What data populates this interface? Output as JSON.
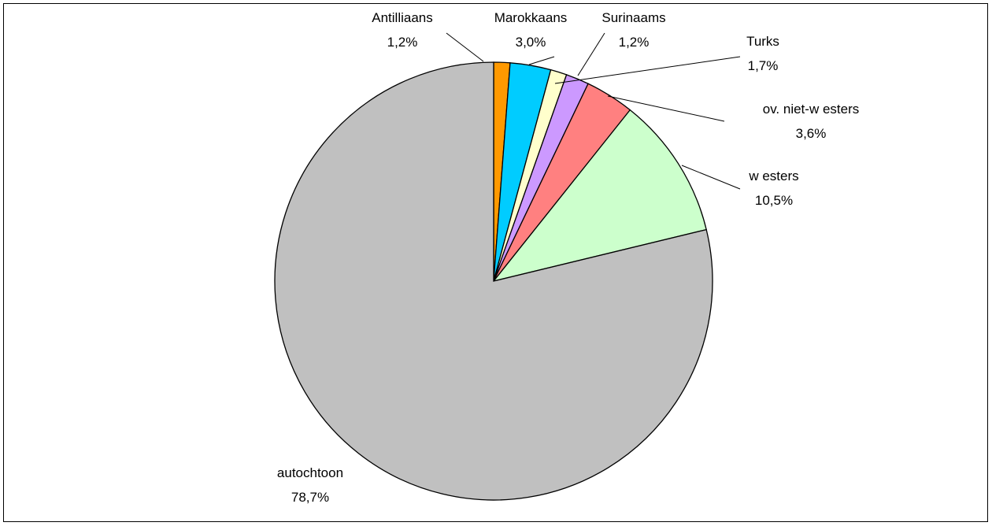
{
  "chart_data": {
    "type": "pie",
    "title": "",
    "start_angle_deg": 0,
    "direction": "clockwise",
    "slices": [
      {
        "name": "Antilliaans",
        "value": 1.2,
        "label": "1,2%",
        "color": "#ff9900"
      },
      {
        "name": "Marokkaans",
        "value": 3.0,
        "label": "3,0%",
        "color": "#00ccff"
      },
      {
        "name": "Surinaams",
        "value": 1.2,
        "label": "1,2%",
        "color": "#ffffcc"
      },
      {
        "name": "Turks",
        "value": 1.7,
        "label": "1,7%",
        "color": "#cc99ff"
      },
      {
        "name": "ov. niet-w esters",
        "value": 3.6,
        "label": "3,6%",
        "color": "#ff8080"
      },
      {
        "name": "w esters",
        "value": 10.5,
        "label": "10,5%",
        "color": "#ccffcc"
      },
      {
        "name": "autochtoon",
        "value": 78.7,
        "label": "78,7%",
        "color": "#c0c0c0"
      }
    ]
  }
}
